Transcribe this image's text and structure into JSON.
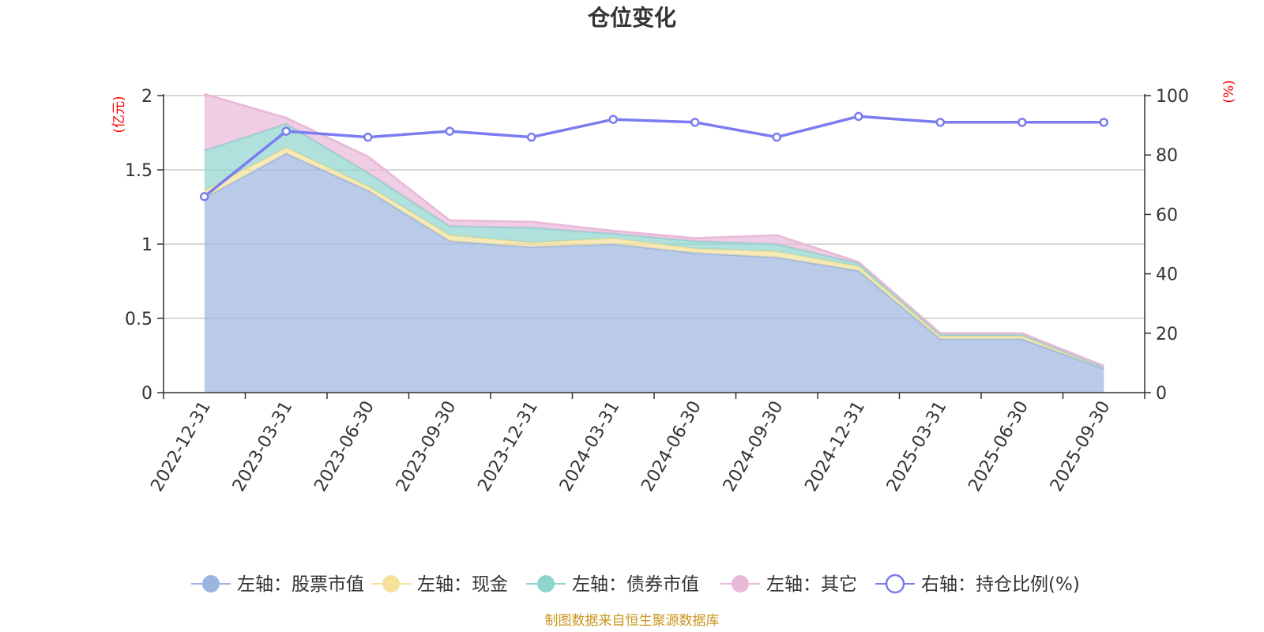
{
  "chart_data": {
    "type": "area",
    "title": "仓位变化",
    "categories": [
      "2022-12-31",
      "2023-03-31",
      "2023-06-30",
      "2023-09-30",
      "2023-12-31",
      "2024-03-31",
      "2024-06-30",
      "2024-09-30",
      "2024-12-31",
      "2025-03-31",
      "2025-06-30",
      "2025-09-30"
    ],
    "left_axis": {
      "unit": "(亿元)",
      "ylim": [
        0,
        2
      ],
      "ticks": [
        "0",
        "0.5",
        "1",
        "1.5",
        "2"
      ]
    },
    "right_axis": {
      "unit": "(%)",
      "ylim": [
        0,
        100
      ],
      "ticks": [
        "0",
        "20",
        "40",
        "60",
        "80",
        "100"
      ]
    },
    "series": [
      {
        "name": "左轴：股票市值",
        "axis": "left",
        "stacked": true,
        "color": "#9bb5e0",
        "values": [
          1.31,
          1.61,
          1.36,
          1.02,
          0.98,
          1.0,
          0.94,
          0.91,
          0.82,
          0.36,
          0.36,
          0.16
        ]
      },
      {
        "name": "左轴：现金",
        "axis": "left",
        "stacked": true,
        "color": "#f5e19a",
        "values": [
          0.05,
          0.04,
          0.03,
          0.04,
          0.03,
          0.04,
          0.03,
          0.04,
          0.03,
          0.02,
          0.02,
          0.01
        ]
      },
      {
        "name": "左轴：债券市值",
        "axis": "left",
        "stacked": true,
        "color": "#8fd4cf",
        "values": [
          0.27,
          0.16,
          0.09,
          0.06,
          0.1,
          0.03,
          0.05,
          0.05,
          0.02,
          0.01,
          0.01,
          0.0
        ]
      },
      {
        "name": "左轴：其它",
        "axis": "left",
        "stacked": true,
        "color": "#e8b8d8",
        "values": [
          0.38,
          0.04,
          0.11,
          0.04,
          0.04,
          0.02,
          0.02,
          0.06,
          0.01,
          0.01,
          0.01,
          0.01
        ]
      },
      {
        "name": "右轴：持仓比例(%)",
        "axis": "right",
        "type": "line",
        "color": "#7a7cf0",
        "values": [
          66,
          88,
          86,
          88,
          86,
          92,
          91,
          86,
          93,
          91,
          91,
          91
        ]
      }
    ]
  },
  "footer": {
    "source": "制图数据来自恒生聚源数据库"
  }
}
